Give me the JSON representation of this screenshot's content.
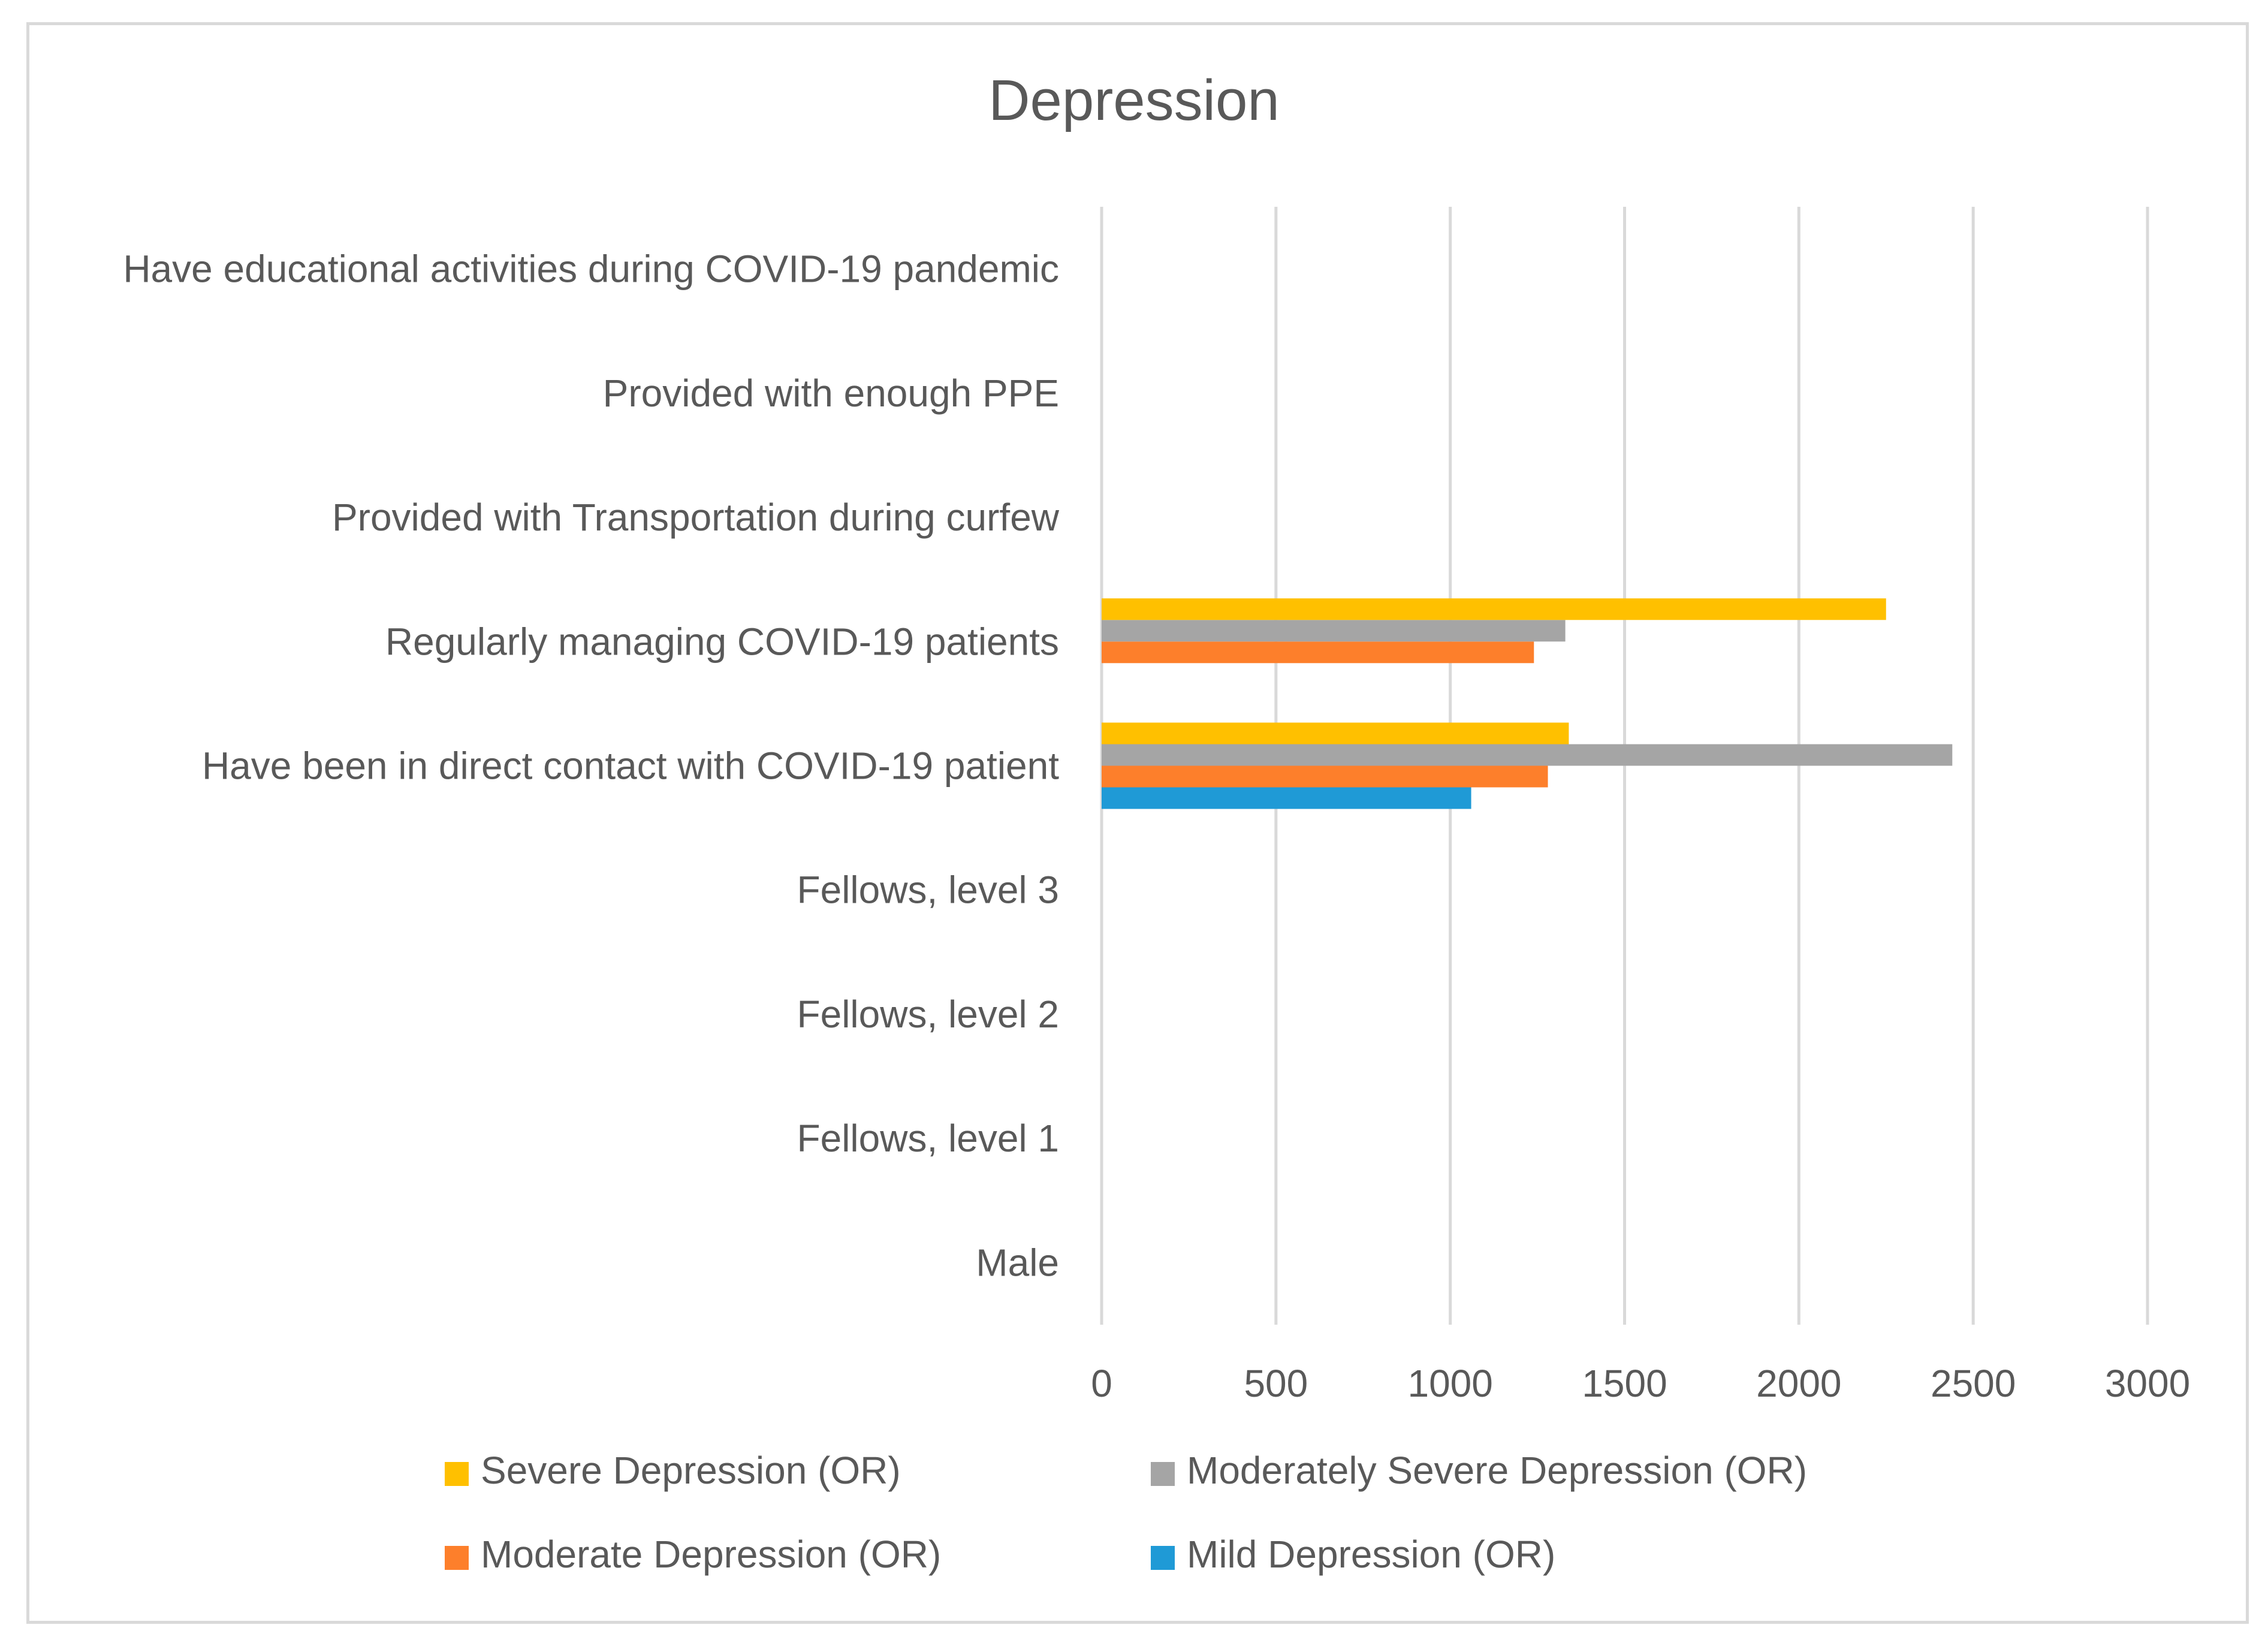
{
  "chart_data": {
    "type": "bar",
    "orientation": "horizontal",
    "title": "Depression",
    "xlabel": "",
    "ylabel": "",
    "xlim": [
      0,
      3000
    ],
    "x_ticks": [
      "0",
      "500",
      "1000",
      "1500",
      "2000",
      "2500",
      "3000"
    ],
    "grid": true,
    "legend_position": "bottom",
    "categories": [
      "Male",
      "Fellows, level 1",
      "Fellows, level 2",
      "Fellows, level 3",
      "Have been in direct contact with COVID-19 patient",
      "Regularly managing COVID-19 patients",
      "Provided with Transportation during curfew",
      "Provided with enough PPE",
      "Have educational activities during COVID-19 pandemic"
    ],
    "series": [
      {
        "name": "Mild Depression (OR)",
        "color": "#1f9ad6",
        "values": [
          null,
          null,
          null,
          null,
          1060,
          null,
          null,
          null,
          null
        ]
      },
      {
        "name": "Moderate Depression (OR)",
        "color": "#fd7f2b",
        "values": [
          null,
          null,
          null,
          null,
          1280,
          1240,
          null,
          null,
          null
        ]
      },
      {
        "name": "Moderately Severe Depression (OR)",
        "color": "#a5a5a5",
        "values": [
          null,
          null,
          null,
          null,
          2440,
          1330,
          null,
          null,
          null
        ]
      },
      {
        "name": "Severe Depression (OR)",
        "color": "#ffc000",
        "values": [
          null,
          null,
          null,
          null,
          1340,
          2250,
          null,
          null,
          null
        ]
      }
    ],
    "legend_order": [
      "Severe Depression (OR)",
      "Moderately Severe Depression (OR)",
      "Moderate Depression (OR)",
      "Mild Depression (OR)"
    ]
  }
}
